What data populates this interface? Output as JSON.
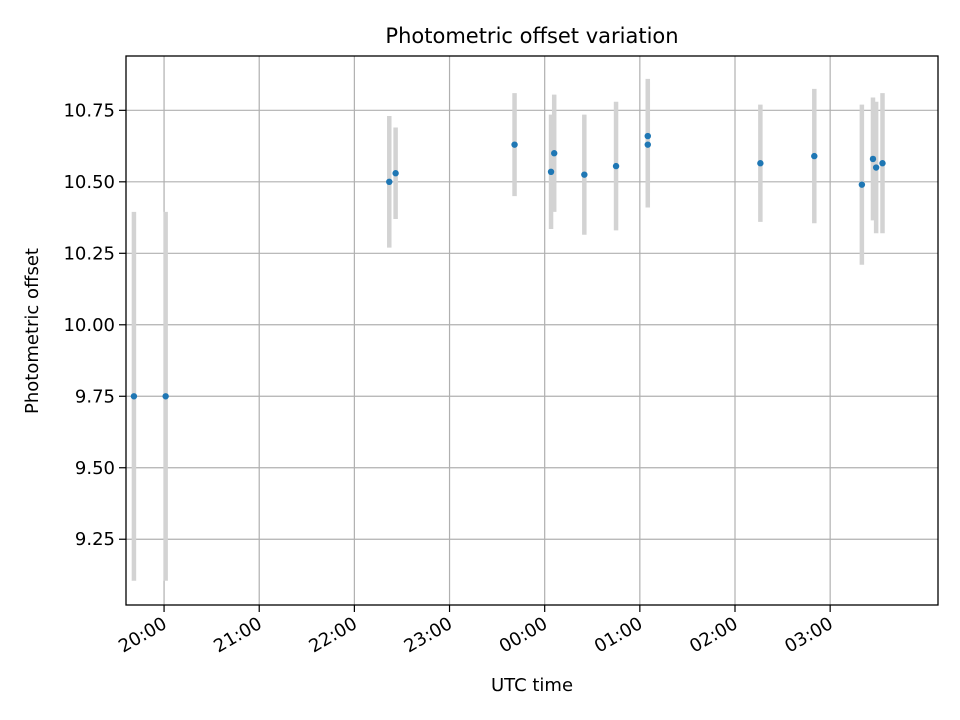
{
  "chart_data": {
    "type": "scatter",
    "title": "Photometric offset variation",
    "xlabel": "UTC time",
    "ylabel": "Photometric offset",
    "x_unit": "UTC time (relative day axis)",
    "xlim": [
      "19:36",
      "04:08"
    ],
    "ylim": [
      9.02,
      10.94
    ],
    "grid": true,
    "x_ticks": [
      "20:00",
      "21:00",
      "22:00",
      "23:00",
      "00:00",
      "01:00",
      "02:00",
      "03:00"
    ],
    "y_ticks": [
      "9.25",
      "9.50",
      "9.75",
      "10.00",
      "10.25",
      "10.50",
      "10.75"
    ],
    "y_tick_values": [
      9.25,
      9.5,
      9.75,
      10.0,
      10.25,
      10.5,
      10.75
    ],
    "marker_color": "#1f77b4",
    "errorbar_color": "#d3d3d3",
    "points": [
      {
        "x": "19:41",
        "y": 9.75,
        "err": 0.645
      },
      {
        "x": "20:01",
        "y": 9.75,
        "err": 0.645
      },
      {
        "x": "22:22",
        "y": 10.5,
        "err": 0.23
      },
      {
        "x": "22:26",
        "y": 10.53,
        "err": 0.16
      },
      {
        "x": "23:41",
        "y": 10.63,
        "err": 0.18
      },
      {
        "x": "00:04",
        "y": 10.535,
        "err": 0.2
      },
      {
        "x": "00:06",
        "y": 10.6,
        "err": 0.205
      },
      {
        "x": "00:25",
        "y": 10.525,
        "err": 0.21
      },
      {
        "x": "00:45",
        "y": 10.555,
        "err": 0.225
      },
      {
        "x": "01:05",
        "y": 10.63,
        "err": 0.22
      },
      {
        "x": "01:05",
        "y": 10.66,
        "err": 0.2
      },
      {
        "x": "02:16",
        "y": 10.565,
        "err": 0.205
      },
      {
        "x": "02:50",
        "y": 10.59,
        "err": 0.235
      },
      {
        "x": "03:20",
        "y": 10.49,
        "err": 0.28
      },
      {
        "x": "03:27",
        "y": 10.58,
        "err": 0.215
      },
      {
        "x": "03:29",
        "y": 10.55,
        "err": 0.23
      },
      {
        "x": "03:33",
        "y": 10.565,
        "err": 0.245
      }
    ]
  }
}
